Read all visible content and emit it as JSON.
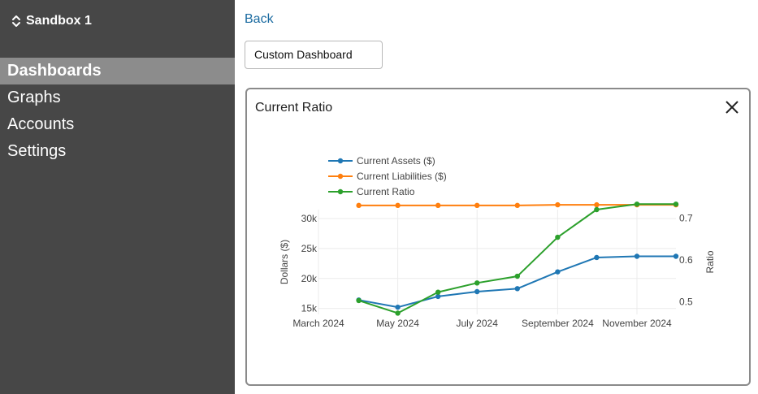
{
  "sidebar": {
    "sandbox_label": "Sandbox 1",
    "items": [
      {
        "label": "Dashboards",
        "active": true
      },
      {
        "label": "Graphs",
        "active": false
      },
      {
        "label": "Accounts",
        "active": false
      },
      {
        "label": "Settings",
        "active": false
      }
    ]
  },
  "main": {
    "back_label": "Back",
    "dashboard_select_value": "Custom Dashboard",
    "card": {
      "title": "Current Ratio"
    }
  },
  "colors": {
    "sidebar_bg": "#474747",
    "active_item": "#8c8c8c",
    "link": "#1a6aa0",
    "series_assets": "#1f77b4",
    "series_liabilities": "#ff7f0e",
    "series_ratio": "#2ca02c"
  },
  "chart_data": {
    "type": "line",
    "title": "",
    "x": [
      "2024-04-01",
      "2024-05-01",
      "2024-06-01",
      "2024-07-01",
      "2024-08-01",
      "2024-09-01",
      "2024-10-01",
      "2024-11-01",
      "2024-12-01"
    ],
    "x_ticks": [
      {
        "date": "2024-03-01",
        "label": "March 2024"
      },
      {
        "date": "2024-05-01",
        "label": "May 2024"
      },
      {
        "date": "2024-07-01",
        "label": "July 2024"
      },
      {
        "date": "2024-09-01",
        "label": "September 2024"
      },
      {
        "date": "2024-11-01",
        "label": "November 2024"
      }
    ],
    "xlim": [
      "2024-03-01",
      "2024-12-01"
    ],
    "y_left": {
      "label": "Dollars ($)",
      "range": [
        14000,
        31500
      ],
      "ticks": [
        15000,
        20000,
        25000,
        30000
      ],
      "tick_labels": [
        "15k",
        "20k",
        "25k",
        "30k"
      ]
    },
    "y_right": {
      "label": "Ratio",
      "range": [
        0.47,
        0.72
      ],
      "ticks": [
        0.5,
        0.6,
        0.7
      ],
      "tick_labels": [
        "0.5",
        "0.6",
        "0.7"
      ]
    },
    "series": [
      {
        "name": "Current Assets ($)",
        "axis": "left",
        "color": "#1f77b4",
        "values": [
          16400,
          15200,
          17000,
          17800,
          18300,
          21100,
          23500,
          23700,
          23700
        ]
      },
      {
        "name": "Current Liabilities ($)",
        "axis": "left",
        "color": "#ff7f0e",
        "values": [
          32200,
          32200,
          32200,
          32200,
          32200,
          32300,
          32300,
          32300,
          32300
        ]
      },
      {
        "name": "Current Ratio",
        "axis": "right",
        "color": "#2ca02c",
        "values": [
          0.503,
          0.473,
          0.523,
          0.545,
          0.561,
          0.654,
          0.72,
          0.733,
          0.733
        ]
      }
    ],
    "legend_position": "top-left",
    "grid": true
  }
}
